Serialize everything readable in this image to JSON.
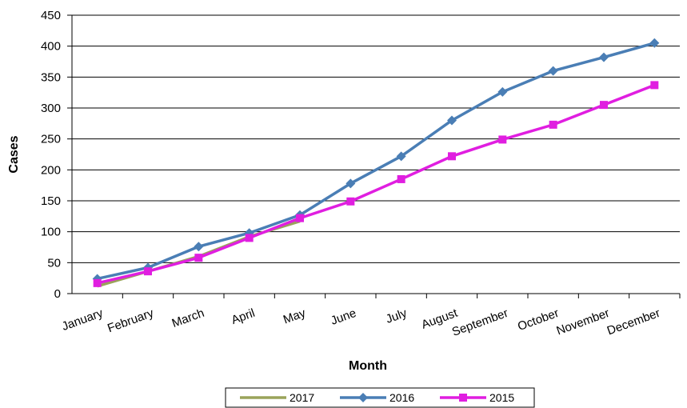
{
  "chart_data": {
    "type": "line",
    "x_label": "Month",
    "y_label": "Cases",
    "categories": [
      "January",
      "February",
      "March",
      "April",
      "May",
      "June",
      "July",
      "August",
      "September",
      "October",
      "November",
      "December"
    ],
    "series": [
      {
        "name": "2017",
        "color": "#9aa35a",
        "marker": "none",
        "values": [
          12,
          36,
          60,
          92,
          117,
          null,
          null,
          null,
          null,
          null,
          null,
          null
        ]
      },
      {
        "name": "2016",
        "color": "#4a7eb5",
        "marker": "diamond",
        "values": [
          24,
          42,
          76,
          98,
          127,
          178,
          222,
          280,
          326,
          360,
          382,
          405
        ]
      },
      {
        "name": "2015",
        "color": "#e01ee0",
        "marker": "square",
        "values": [
          17,
          36,
          58,
          90,
          122,
          149,
          185,
          222,
          249,
          273,
          305,
          337
        ]
      }
    ],
    "ylim": [
      0,
      450
    ],
    "yticks": [
      0,
      50,
      100,
      150,
      200,
      250,
      300,
      350,
      400,
      450
    ],
    "grid": true,
    "legend": "bottom"
  }
}
